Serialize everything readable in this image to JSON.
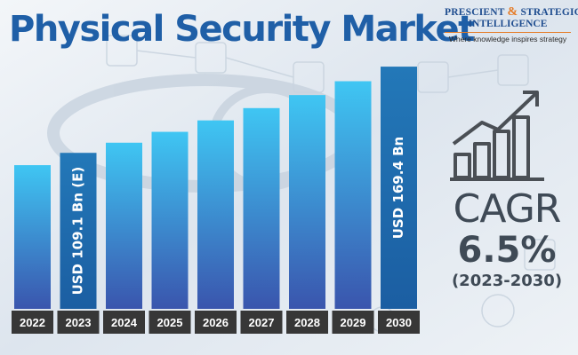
{
  "page": {
    "title": "Physical Security Market"
  },
  "logo": {
    "line1_a": "PRESCIENT",
    "line1_amp": "&",
    "line1_b": "STRATEGIC",
    "line2": "INTELLIGENCE",
    "tagline": "Where knowledge inspires strategy"
  },
  "cagr": {
    "label": "CAGR",
    "value": "6.5%",
    "period": "(2023-2030)"
  },
  "icons": {
    "growth": "bar-chart-growth-arrow-icon",
    "background": "security-camera-network-icons"
  },
  "colors": {
    "title": "#1f5fa7",
    "bar_top": "#3fc6f3",
    "bar_bottom": "#3a55ad",
    "highlight_bar_top": "#2378b8",
    "highlight_bar_bottom": "#1b5ea2",
    "label_bg": "#373737",
    "cagr_text": "#3f4a56",
    "logo_accent": "#e57a24"
  },
  "chart_data": {
    "type": "bar",
    "title": "Physical Security Market",
    "categories": [
      "2022",
      "2023",
      "2024",
      "2025",
      "2026",
      "2027",
      "2028",
      "2029",
      "2030"
    ],
    "values": [
      100.5,
      109.1,
      116.2,
      123.8,
      131.8,
      140.4,
      149.5,
      159.2,
      169.4
    ],
    "ylim": [
      0,
      180
    ],
    "grid": false,
    "legend": "none",
    "annotations": [
      {
        "category": "2023",
        "text": "USD 109.1 Bn (E)"
      },
      {
        "category": "2030",
        "text": "USD 169.4 Bn"
      }
    ],
    "highlighted": [
      "2023",
      "2030"
    ]
  }
}
